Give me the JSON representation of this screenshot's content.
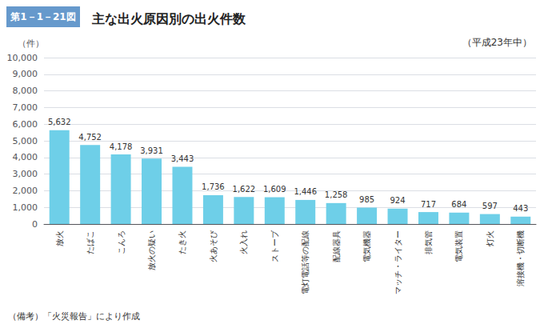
{
  "chart_data": {
    "type": "bar",
    "title": "主な出火原因別の出火件数",
    "subtitle": "（平成23年中）",
    "ylabel": "（件）",
    "annotations": [
      "第1－1－21図",
      "（備考）「火災報告」により作成"
    ],
    "categories": [
      "放火",
      "たばこ",
      "こんろ",
      "放火の疑い",
      "たき火",
      "火あそび",
      "火入れ",
      "ストーブ",
      "電灯電話等の配線",
      "配線器具",
      "電気機器",
      "マッチ・ライター",
      "排気管",
      "電気装置",
      "灯火",
      "溶接機・切断機"
    ],
    "values": [
      5632,
      4752,
      4178,
      3931,
      3443,
      1736,
      1622,
      1609,
      1446,
      1258,
      985,
      924,
      717,
      684,
      597,
      443
    ],
    "value_labels": [
      "5,632",
      "4,752",
      "4,178",
      "3,931",
      "3,443",
      "1,736",
      "1,622",
      "1,609",
      "1,446",
      "1,258",
      "985",
      "924",
      "717",
      "684",
      "597",
      "443"
    ],
    "color": "#6ecfe8",
    "ylim": [
      0,
      10000
    ],
    "yticks": [
      0,
      {
        "value": 1000,
        "label": "1,000"
      },
      {
        "value": 2000,
        "label": "2,000"
      },
      {
        "value": 3000,
        "label": "3,000"
      },
      {
        "value": 4000,
        "label": "4,000"
      },
      {
        "value": 5000,
        "label": "5,000"
      },
      {
        "value": 6000,
        "label": "6,000"
      },
      {
        "value": 7000,
        "label": "7,000"
      },
      {
        "value": 8000,
        "label": "8,000"
      },
      {
        "value": 9000,
        "label": "9,000"
      },
      {
        "value": 10000,
        "label": "10,000"
      }
    ],
    "grid": true,
    "data_labels": true
  }
}
